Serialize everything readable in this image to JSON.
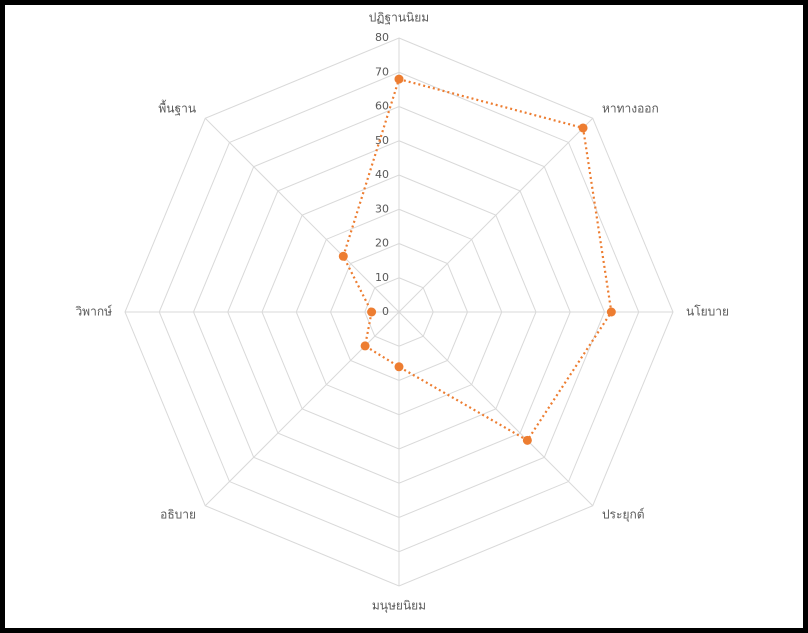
{
  "chart_data": {
    "type": "radar",
    "categories": [
      "ปฏิฐานนิยม",
      "หาทางออก",
      "นโยบาย",
      "ประยุกต์",
      "มนุษยนิยม",
      "อธิบาย",
      "วิพากษ์",
      "พื้นฐาน"
    ],
    "series": [
      {
        "color": "#ed7d31",
        "values": [
          68,
          76,
          62,
          53,
          16,
          14,
          8,
          23
        ]
      }
    ],
    "rlim": [
      0,
      80
    ],
    "rticks": [
      0,
      10,
      20,
      30,
      40,
      50,
      60,
      70,
      80
    ],
    "grid": true
  }
}
